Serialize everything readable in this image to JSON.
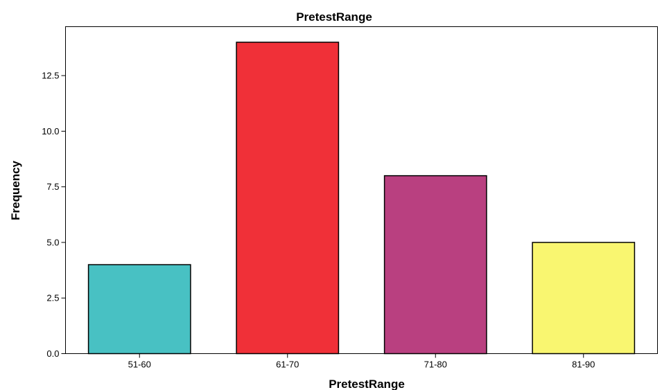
{
  "chart_data": {
    "type": "bar",
    "title": "PretestRange",
    "xlabel": "PretestRange",
    "ylabel": "Frequency",
    "categories": [
      "51-60",
      "61-70",
      "71-80",
      "81-90"
    ],
    "values": [
      4,
      14,
      8,
      5
    ],
    "colors": [
      "#48c1c3",
      "#f03038",
      "#b94080",
      "#f9f670"
    ],
    "ylim": [
      0,
      14.7
    ],
    "yticks": [
      0,
      2.5,
      5,
      7.5,
      10,
      12.5
    ],
    "ytick_labels": [
      "0.0",
      "2.5",
      "5.0",
      "7.5",
      "10.0",
      "12.5"
    ],
    "grid": false,
    "legend": "none"
  }
}
